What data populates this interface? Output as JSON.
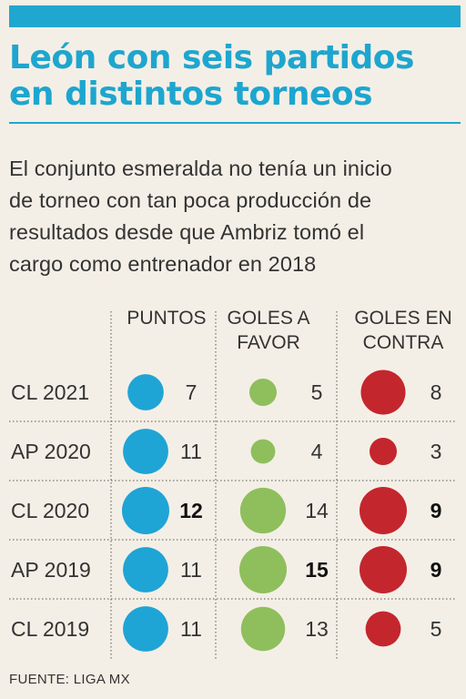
{
  "header": {
    "title_line1": "León con seis partidos",
    "title_line2": "en distintos torneos",
    "intro_lines": [
      "El conjunto esmeralda no tenía un inicio",
      "de torneo con tan poca producción de",
      "resultados desde que Ambriz tomó el",
      "cargo como entrenador en 2018"
    ]
  },
  "chart_data": {
    "type": "table",
    "columns": [
      {
        "key": "puntos",
        "lines": [
          "PUNTOS"
        ]
      },
      {
        "key": "favor",
        "lines": [
          "GOLES A",
          "FAVOR"
        ]
      },
      {
        "key": "contra",
        "lines": [
          "GOLES EN",
          "CONTRA"
        ]
      }
    ],
    "rows": [
      {
        "torneo": "CL 2021",
        "puntos": 7,
        "favor": 5,
        "contra": 8,
        "bold": []
      },
      {
        "torneo": "AP 2020",
        "puntos": 11,
        "favor": 4,
        "contra": 3,
        "bold": []
      },
      {
        "torneo": "CL 2020",
        "puntos": 12,
        "favor": 14,
        "contra": 9,
        "bold": [
          "puntos",
          "contra"
        ]
      },
      {
        "torneo": "AP 2019",
        "puntos": 11,
        "favor": 15,
        "contra": 9,
        "bold": [
          "favor",
          "contra"
        ]
      },
      {
        "torneo": "CL 2019",
        "puntos": 11,
        "favor": 13,
        "contra": 5,
        "bold": []
      }
    ]
  },
  "colors": {
    "puntos": "#1fa4d6",
    "favor": "#8fbf5c",
    "contra": "#c4262e",
    "accent": "#1da6cf"
  },
  "footer": {
    "source_label": "FUENTE:",
    "source_value": "LIGA MX"
  }
}
